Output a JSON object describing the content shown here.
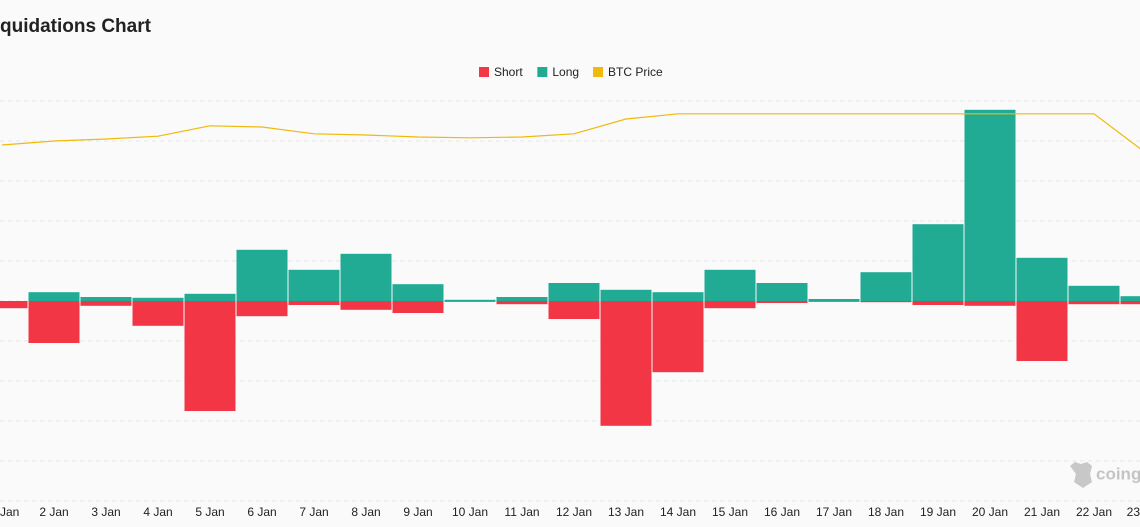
{
  "chart_data": {
    "type": "bar",
    "title": "quidations Chart",
    "categories": [
      "Jan",
      "2 Jan",
      "3 Jan",
      "4 Jan",
      "5 Jan",
      "6 Jan",
      "7 Jan",
      "8 Jan",
      "9 Jan",
      "10 Jan",
      "11 Jan",
      "12 Jan",
      "13 Jan",
      "14 Jan",
      "15 Jan",
      "16 Jan",
      "17 Jan",
      "18 Jan",
      "19 Jan",
      "20 Jan",
      "21 Jan",
      "22 Jan",
      "23"
    ],
    "series": [
      {
        "name": "Short",
        "color": "#f23645",
        "values": [
          0.18,
          1.05,
          0.12,
          0.62,
          2.75,
          0.38,
          0.1,
          0.22,
          0.3,
          0.02,
          0.08,
          0.45,
          3.12,
          1.78,
          0.18,
          0.05,
          0.02,
          0.03,
          0.1,
          0.12,
          1.5,
          0.08,
          0.08
        ]
      },
      {
        "name": "Long",
        "color": "#22ab94",
        "values": [
          0,
          0.22,
          0.1,
          0.08,
          0.18,
          1.28,
          0.78,
          1.18,
          0.42,
          0.03,
          0.1,
          0.45,
          0.28,
          0.22,
          0.78,
          0.45,
          0.05,
          0.72,
          1.92,
          4.78,
          1.08,
          0.38,
          0.12
        ]
      },
      {
        "name": "BTC Price",
        "color": "#f0b90b",
        "values": [
          3.9,
          4.0,
          4.05,
          4.12,
          4.38,
          4.35,
          4.18,
          4.15,
          4.1,
          4.08,
          4.1,
          4.18,
          4.55,
          4.68,
          4.68,
          4.68,
          4.68,
          4.68,
          4.68,
          4.68,
          4.68,
          4.68,
          3.7
        ]
      }
    ],
    "ylim": [
      -5,
      5
    ],
    "yticks": [
      -5,
      -4,
      -3,
      -2,
      -1,
      0,
      1,
      2,
      3,
      4,
      5
    ],
    "grid": true,
    "legend": "top",
    "watermark": "coingl"
  }
}
